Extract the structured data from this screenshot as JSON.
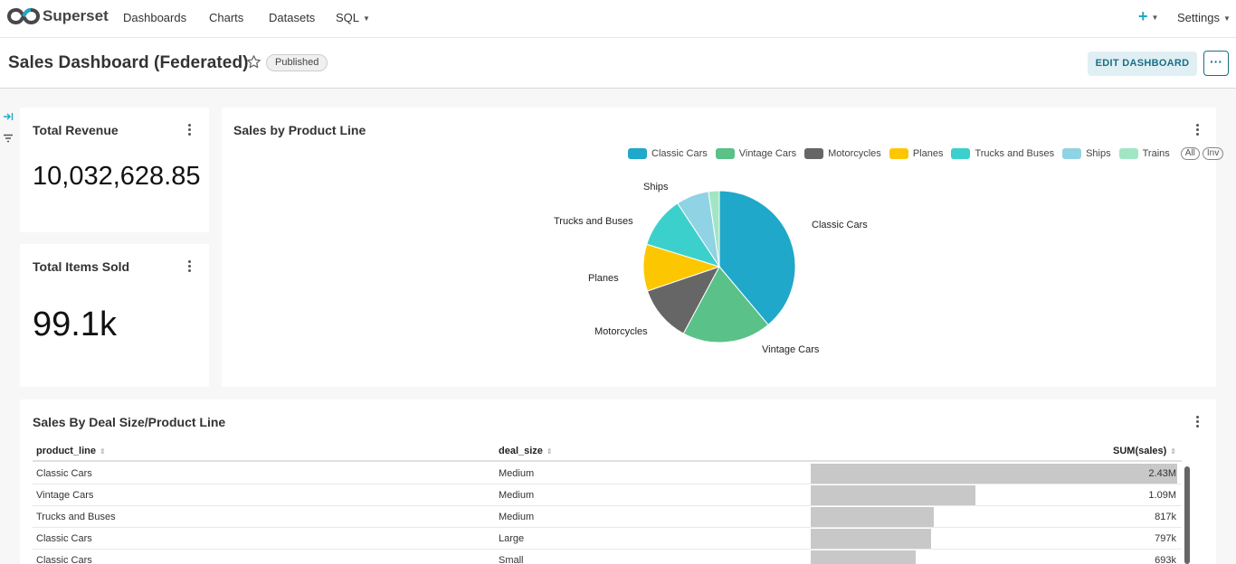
{
  "nav": {
    "brand": "Superset",
    "items": [
      "Dashboards",
      "Charts",
      "Datasets",
      "SQL"
    ],
    "plus": "+",
    "settings": "Settings"
  },
  "header": {
    "title": "Sales Dashboard (Federated)",
    "status": "Published",
    "edit_label": "EDIT DASHBOARD",
    "more_label": "···"
  },
  "kpis": [
    {
      "title": "Total Revenue",
      "value": "10,032,628.85"
    },
    {
      "title": "Total Items Sold",
      "value": "99.1k"
    }
  ],
  "pie": {
    "title": "Sales by Product Line",
    "legend_all": "All",
    "legend_inv": "Inv",
    "chart_data": {
      "type": "pie",
      "categories": [
        "Classic Cars",
        "Vintage Cars",
        "Motorcycles",
        "Planes",
        "Trucks and Buses",
        "Ships",
        "Trains"
      ],
      "values": [
        3.9,
        1.9,
        1.2,
        1.0,
        1.1,
        0.7,
        0.23
      ],
      "colors": [
        "#1fa8c9",
        "#5ac189",
        "#666666",
        "#fcc700",
        "#3cd0cc",
        "#8fd3e4",
        "#a1e6c4"
      ]
    }
  },
  "table": {
    "title": "Sales By Deal Size/Product Line",
    "columns": [
      "product_line",
      "deal_size",
      "SUM(sales)"
    ],
    "rows": [
      {
        "product_line": "Classic Cars",
        "deal_size": "Medium",
        "sales": "2.43M",
        "value": 2.43
      },
      {
        "product_line": "Vintage Cars",
        "deal_size": "Medium",
        "sales": "1.09M",
        "value": 1.09
      },
      {
        "product_line": "Trucks and Buses",
        "deal_size": "Medium",
        "sales": "817k",
        "value": 0.817
      },
      {
        "product_line": "Classic Cars",
        "deal_size": "Large",
        "sales": "797k",
        "value": 0.797
      },
      {
        "product_line": "Classic Cars",
        "deal_size": "Small",
        "sales": "693k",
        "value": 0.693
      }
    ]
  }
}
